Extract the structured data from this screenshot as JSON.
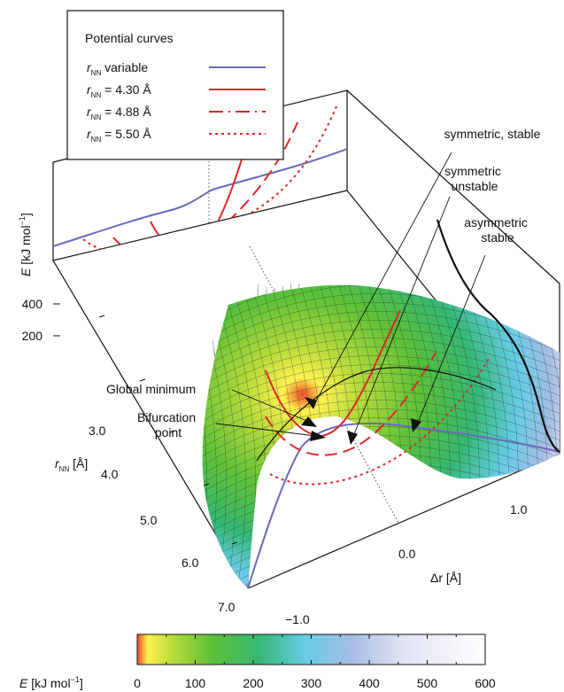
{
  "chart_data": {
    "type": "surface",
    "legend": {
      "title": "Potential curves",
      "placement": "top-left",
      "entries": [
        {
          "sym": "r",
          "sub": "NN",
          "text": "variable",
          "color": "#6a6ab8",
          "dash": "solid"
        },
        {
          "sym": "r",
          "sub": "NN",
          "text": "= 4.30 Å",
          "color": "#e0262a",
          "dash": "solid"
        },
        {
          "sym": "r",
          "sub": "NN",
          "text": "= 4.88 Å",
          "color": "#e0262a",
          "dash": "long-dash"
        },
        {
          "sym": "r",
          "sub": "NN",
          "text": "= 5.50 Å",
          "color": "#e0262a",
          "dash": "dotted"
        }
      ]
    },
    "axes": {
      "energy": {
        "sym": "E",
        "unit": "[kJ mol",
        "sup": "−1",
        "close": "]",
        "ticks": [
          "400",
          "200"
        ]
      },
      "rnn": {
        "sym": "r",
        "sub": "NN",
        "unit": "[Å]",
        "ticks": [
          "3.0",
          "4.0",
          "5.0",
          "6.0",
          "7.0"
        ]
      },
      "dr": {
        "sym": "Δr",
        "unit": "[Å]",
        "ticks": [
          "−1.0",
          "0.0",
          "1.0"
        ]
      }
    },
    "annotations": [
      {
        "lines": [
          "symmetric, stable"
        ]
      },
      {
        "lines": [
          "symmetric",
          "unstable"
        ]
      },
      {
        "lines": [
          "asymmetric",
          "stable"
        ]
      },
      {
        "lines": [
          "Global minimum"
        ]
      },
      {
        "lines": [
          "Bifurcation",
          "point"
        ]
      }
    ],
    "colorbar": {
      "sym": "E",
      "unit": "[kJ mol",
      "sup": "−1",
      "close": "]",
      "range": [
        0,
        600
      ],
      "ticks": [
        "0",
        "100",
        "200",
        "300",
        "400",
        "500",
        "600"
      ],
      "stops": [
        {
          "v": 0,
          "color": "#ee4a2a"
        },
        {
          "v": 18,
          "color": "#fff250"
        },
        {
          "v": 60,
          "color": "#b9dc3c"
        },
        {
          "v": 130,
          "color": "#5cc038"
        },
        {
          "v": 210,
          "color": "#36b874"
        },
        {
          "v": 290,
          "color": "#66cce8"
        },
        {
          "v": 370,
          "color": "#a7bde4"
        },
        {
          "v": 460,
          "color": "#e2e4f4"
        },
        {
          "v": 600,
          "color": "#ffffff"
        }
      ]
    },
    "colors": {
      "variable": "#6a6ab8",
      "fixed": "#e0262a",
      "asymmetric": "#111111"
    }
  }
}
